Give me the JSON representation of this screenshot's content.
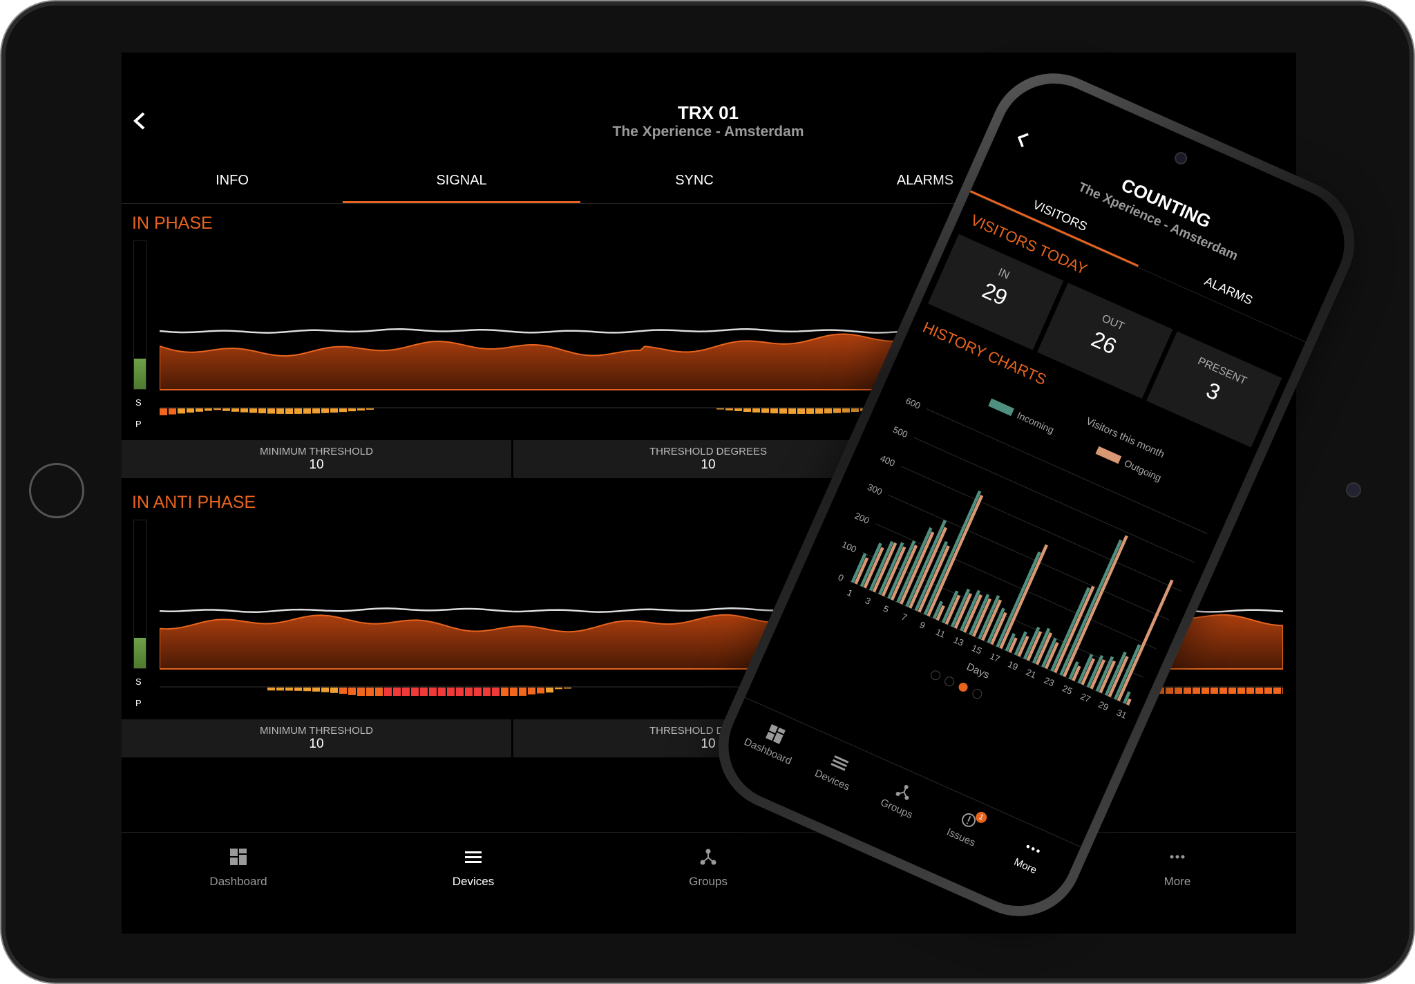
{
  "tablet": {
    "header": {
      "title": "TRX 01",
      "subtitle": "The Xperience - Amsterdam"
    },
    "tabs": [
      "INFO",
      "SIGNAL",
      "SYNC",
      "ALARMS"
    ],
    "sections": [
      {
        "title": "IN PHASE",
        "meter_labels": [
          "S",
          "P"
        ],
        "thresholds": [
          {
            "label": "MINIMUM THRESHOLD",
            "value": 10
          },
          {
            "label": "THRESHOLD DEGREES",
            "value": 10
          }
        ]
      },
      {
        "title": "IN ANTI PHASE",
        "meter_labels": [
          "S",
          "P"
        ],
        "thresholds": [
          {
            "label": "MINIMUM THRESHOLD",
            "value": 10
          },
          {
            "label": "THRESHOLD DEGREES",
            "value": 10
          }
        ]
      }
    ],
    "nav": [
      "Dashboard",
      "Devices",
      "Groups",
      "More"
    ]
  },
  "phone": {
    "header": {
      "title": "COUNTING",
      "subtitle": "The Xperience - Amsterdam"
    },
    "tabs": [
      "VISITORS",
      "ALARMS"
    ],
    "today": {
      "title": "VISITORS TODAY",
      "stats": [
        {
          "label": "IN",
          "value": 29
        },
        {
          "label": "OUT",
          "value": 26
        },
        {
          "label": "PRESENT",
          "value": 3
        }
      ]
    },
    "history_title": "HISTORY CHARTS",
    "nav": [
      "Dashboard",
      "Devices",
      "Groups",
      "Issues",
      "More"
    ],
    "issues_badge": 1
  },
  "chart_data": {
    "type": "bar",
    "title": "Visitors this month",
    "x_label": "Days",
    "categories": [
      "1",
      null,
      "3",
      null,
      "5",
      null,
      "7",
      null,
      "9",
      null,
      "11",
      null,
      "13",
      null,
      "15",
      null,
      "17",
      null,
      "19",
      null,
      "21",
      null,
      "23",
      null,
      "25",
      null,
      "27",
      null,
      "29",
      null,
      "31"
    ],
    "series": [
      {
        "name": "Incoming",
        "color": "#4f8f80",
        "values": [
          100,
          150,
          170,
          180,
          200,
          260,
          300,
          240,
          430,
          60,
          110,
          130,
          140,
          140,
          150,
          120,
          330,
          60,
          80,
          110,
          120,
          100,
          290,
          470,
          60,
          100,
          110,
          120,
          150,
          190,
          40
        ]
      },
      {
        "name": "Outgoing",
        "color": "#d99873",
        "values": [
          90,
          140,
          170,
          170,
          190,
          250,
          280,
          230,
          420,
          50,
          100,
          120,
          130,
          130,
          140,
          110,
          360,
          50,
          70,
          100,
          110,
          90,
          300,
          490,
          50,
          90,
          100,
          110,
          140,
          420,
          20
        ]
      }
    ],
    "ylim": [
      0,
      600
    ],
    "yticks": [
      0,
      100,
      200,
      300,
      400,
      500,
      600
    ],
    "grid": true
  }
}
